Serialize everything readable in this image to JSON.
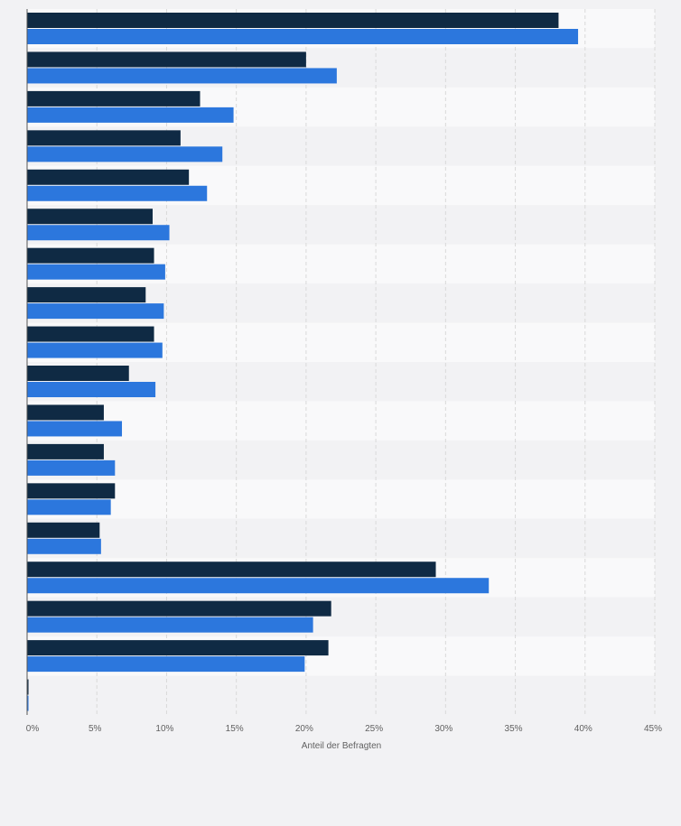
{
  "chart_data": {
    "type": "bar",
    "orientation": "horizontal",
    "categories": [
      "",
      "",
      "",
      "",
      "",
      "",
      "",
      "",
      "",
      "",
      "",
      "",
      "",
      "",
      "",
      "",
      "",
      ""
    ],
    "series": [
      {
        "color": "#0f2a44",
        "values": [
          38.1,
          20.0,
          12.4,
          11.0,
          11.6,
          9.0,
          9.1,
          8.5,
          9.1,
          7.3,
          5.5,
          5.5,
          6.3,
          5.2,
          29.3,
          21.8,
          21.6,
          0.1
        ]
      },
      {
        "color": "#2c77dd",
        "values": [
          39.5,
          22.2,
          14.8,
          14.0,
          12.9,
          10.2,
          9.9,
          9.8,
          9.7,
          9.2,
          6.8,
          6.3,
          6.0,
          5.3,
          33.1,
          20.5,
          19.9,
          0.1
        ]
      }
    ],
    "xlim": [
      0,
      45
    ],
    "xticks": [
      0,
      5,
      10,
      15,
      20,
      25,
      30,
      35,
      40,
      45
    ],
    "tick_labels": [
      "0%",
      "5%",
      "10%",
      "15%",
      "20%",
      "25%",
      "30%",
      "35%",
      "40%",
      "45%"
    ],
    "xlabel": "Anteil der Befragten",
    "grid": true,
    "legend": "none"
  },
  "colors": {
    "page_background": "#f2f2f4",
    "plot_band_light": "#f9f9fa",
    "plot_band_dark": "#f2f2f4",
    "grid": "#d9d9d9",
    "tick_text": "#606060"
  }
}
